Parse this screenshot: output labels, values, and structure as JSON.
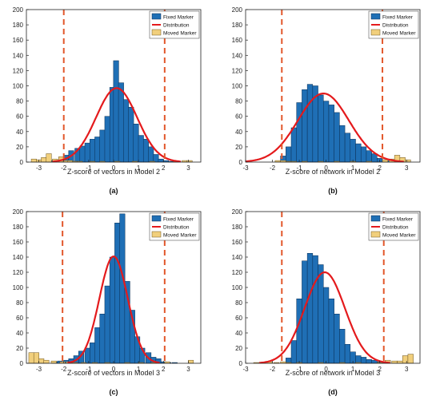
{
  "colors": {
    "fixed": "#1f6fb5",
    "fixed_edge": "#0b2f55",
    "moved": "#f1cf7c",
    "moved_edge": "#6e5520",
    "curve": "#e41a1c",
    "threshold": "#e2572b"
  },
  "chart_data": [
    {
      "type": "bar",
      "caption": "(a)",
      "xlabel": "Z-score of vectors in Model 2",
      "ylabel": "",
      "xlim": [
        -3.5,
        3.5
      ],
      "ylim": [
        0,
        200
      ],
      "xticks": [
        -3,
        -2,
        -1,
        0,
        1,
        2,
        3
      ],
      "yticks": [
        0,
        20,
        40,
        60,
        80,
        100,
        120,
        140,
        160,
        180,
        200
      ],
      "grid": false,
      "legend_position": "top-right",
      "legend": [
        "Fixed Marker",
        "Distribution",
        "Moved Marker"
      ],
      "bin_width": 0.21,
      "fixed_bins": [
        [
          -2.55,
          2
        ],
        [
          -2.35,
          3
        ],
        [
          -2.1,
          6
        ],
        [
          -1.9,
          9
        ],
        [
          -1.7,
          15
        ],
        [
          -1.45,
          18
        ],
        [
          -1.25,
          21
        ],
        [
          -1.05,
          25
        ],
        [
          -0.85,
          30
        ],
        [
          -0.65,
          33
        ],
        [
          -0.45,
          42
        ],
        [
          -0.25,
          60
        ],
        [
          -0.05,
          98
        ],
        [
          0.1,
          133
        ],
        [
          0.3,
          104
        ],
        [
          0.5,
          82
        ],
        [
          0.7,
          72
        ],
        [
          0.9,
          50
        ],
        [
          1.1,
          35
        ],
        [
          1.3,
          30
        ],
        [
          1.5,
          20
        ],
        [
          1.7,
          10
        ],
        [
          1.9,
          4
        ],
        [
          2.1,
          2
        ],
        [
          2.3,
          1
        ],
        [
          2.5,
          1
        ]
      ],
      "moved_bins": [
        [
          -3.2,
          4
        ],
        [
          -3.0,
          3
        ],
        [
          -2.8,
          6
        ],
        [
          -2.6,
          11
        ],
        [
          -2.35,
          4
        ],
        [
          -2.1,
          7
        ],
        [
          -1.95,
          2
        ],
        [
          -1.75,
          2
        ],
        [
          -1.55,
          1
        ],
        [
          -1.35,
          1
        ],
        [
          -0.85,
          1
        ],
        [
          -0.45,
          1
        ],
        [
          0.15,
          1
        ],
        [
          0.85,
          1
        ],
        [
          1.55,
          1
        ],
        [
          2.5,
          1
        ],
        [
          2.85,
          2
        ],
        [
          3.05,
          2
        ]
      ],
      "distribution": {
        "mean": 0.12,
        "sd": 0.82,
        "peak": 97
      },
      "thresholds": [
        -2.0,
        2.05
      ]
    },
    {
      "type": "bar",
      "caption": "(b)",
      "xlabel": "Z-score of network in Model 2",
      "ylabel": "",
      "xlim": [
        -3.0,
        3.5
      ],
      "ylim": [
        0,
        200
      ],
      "xticks": [
        -3,
        -2,
        -1,
        0,
        1,
        2,
        3
      ],
      "yticks": [
        0,
        20,
        40,
        60,
        80,
        100,
        120,
        140,
        160,
        180,
        200
      ],
      "grid": false,
      "legend_position": "top-right",
      "legend": [
        "Fixed Marker",
        "Distribution",
        "Moved Marker"
      ],
      "bin_width": 0.2,
      "fixed_bins": [
        [
          -1.6,
          8
        ],
        [
          -1.4,
          20
        ],
        [
          -1.2,
          45
        ],
        [
          -1.0,
          78
        ],
        [
          -0.8,
          95
        ],
        [
          -0.6,
          102
        ],
        [
          -0.4,
          100
        ],
        [
          -0.2,
          88
        ],
        [
          0.0,
          80
        ],
        [
          0.2,
          75
        ],
        [
          0.4,
          65
        ],
        [
          0.6,
          48
        ],
        [
          0.8,
          38
        ],
        [
          1.0,
          30
        ],
        [
          1.2,
          24
        ],
        [
          1.4,
          20
        ],
        [
          1.6,
          15
        ],
        [
          1.8,
          11
        ],
        [
          2.0,
          5
        ],
        [
          2.2,
          3
        ],
        [
          2.4,
          2
        ]
      ],
      "moved_bins": [
        [
          -1.8,
          2
        ],
        [
          -1.6,
          2
        ],
        [
          -1.4,
          1
        ],
        [
          -1.2,
          1
        ],
        [
          -0.8,
          1
        ],
        [
          -0.2,
          1
        ],
        [
          0.4,
          1
        ],
        [
          1.0,
          1
        ],
        [
          1.6,
          1
        ],
        [
          2.2,
          3
        ],
        [
          2.45,
          4
        ],
        [
          2.65,
          9
        ],
        [
          2.85,
          6
        ],
        [
          3.05,
          3
        ]
      ],
      "distribution": {
        "mean": -0.1,
        "sd": 0.95,
        "peak": 90
      },
      "thresholds": [
        -1.65,
        2.1
      ]
    },
    {
      "type": "bar",
      "caption": "(c)",
      "xlabel": "Z-score of vectors in Model 3",
      "ylabel": "",
      "xlim": [
        -3.5,
        3.5
      ],
      "ylim": [
        0,
        200
      ],
      "xticks": [
        -3,
        -2,
        -1,
        0,
        1,
        2,
        3
      ],
      "yticks": [
        0,
        20,
        40,
        60,
        80,
        100,
        120,
        140,
        160,
        180,
        200
      ],
      "grid": false,
      "legend_position": "top-right",
      "legend": [
        "Fixed Marker",
        "Distribution",
        "Moved Marker"
      ],
      "bin_width": 0.21,
      "fixed_bins": [
        [
          -2.35,
          2
        ],
        [
          -2.15,
          3
        ],
        [
          -1.9,
          4
        ],
        [
          -1.7,
          6
        ],
        [
          -1.5,
          10
        ],
        [
          -1.3,
          16
        ],
        [
          -1.05,
          20
        ],
        [
          -0.85,
          27
        ],
        [
          -0.65,
          47
        ],
        [
          -0.45,
          65
        ],
        [
          -0.25,
          102
        ],
        [
          -0.05,
          140
        ],
        [
          0.15,
          185
        ],
        [
          0.35,
          197
        ],
        [
          0.55,
          108
        ],
        [
          0.75,
          70
        ],
        [
          0.95,
          35
        ],
        [
          1.15,
          20
        ],
        [
          1.4,
          14
        ],
        [
          1.6,
          8
        ],
        [
          1.8,
          6
        ],
        [
          2.0,
          2
        ],
        [
          2.2,
          1
        ],
        [
          2.45,
          1
        ]
      ],
      "moved_bins": [
        [
          -3.3,
          14
        ],
        [
          -3.1,
          14
        ],
        [
          -2.9,
          6
        ],
        [
          -2.7,
          4
        ],
        [
          -2.4,
          3
        ],
        [
          -2.05,
          2
        ],
        [
          -1.8,
          2
        ],
        [
          -1.55,
          1
        ],
        [
          -1.2,
          1
        ],
        [
          -0.75,
          1
        ],
        [
          -0.25,
          1
        ],
        [
          0.55,
          1
        ],
        [
          1.1,
          1
        ],
        [
          1.6,
          1
        ],
        [
          2.15,
          2
        ],
        [
          3.1,
          4
        ]
      ],
      "distribution": {
        "mean": 0.0,
        "sd": 0.57,
        "peak": 141
      },
      "thresholds": [
        -2.05,
        2.05
      ]
    },
    {
      "type": "bar",
      "caption": "(d)",
      "xlabel": "Z-score of network in Model 3",
      "ylabel": "",
      "xlim": [
        -3.0,
        3.5
      ],
      "ylim": [
        0,
        200
      ],
      "xticks": [
        -3,
        -2,
        -1,
        0,
        1,
        2,
        3
      ],
      "yticks": [
        0,
        20,
        40,
        60,
        80,
        100,
        120,
        140,
        160,
        180,
        200
      ],
      "grid": false,
      "legend_position": "top-right",
      "legend": [
        "Fixed Marker",
        "Distribution",
        "Moved Marker"
      ],
      "bin_width": 0.2,
      "fixed_bins": [
        [
          -1.4,
          7
        ],
        [
          -1.2,
          30
        ],
        [
          -1.0,
          85
        ],
        [
          -0.8,
          135
        ],
        [
          -0.6,
          145
        ],
        [
          -0.4,
          142
        ],
        [
          -0.2,
          130
        ],
        [
          0.0,
          100
        ],
        [
          0.2,
          85
        ],
        [
          0.4,
          65
        ],
        [
          0.6,
          45
        ],
        [
          0.8,
          25
        ],
        [
          1.0,
          15
        ],
        [
          1.2,
          10
        ],
        [
          1.4,
          8
        ],
        [
          1.6,
          5
        ],
        [
          1.8,
          4
        ],
        [
          2.0,
          2
        ],
        [
          2.2,
          2
        ]
      ],
      "moved_bins": [
        [
          -2.6,
          1
        ],
        [
          -2.35,
          1
        ],
        [
          -2.1,
          2
        ],
        [
          -1.85,
          1
        ],
        [
          -1.6,
          2
        ],
        [
          -1.4,
          1
        ],
        [
          -1.0,
          1
        ],
        [
          -0.2,
          1
        ],
        [
          0.6,
          1
        ],
        [
          1.2,
          1
        ],
        [
          2.0,
          1
        ],
        [
          2.3,
          4
        ],
        [
          2.55,
          3
        ],
        [
          2.75,
          3
        ],
        [
          2.95,
          10
        ],
        [
          3.15,
          12
        ]
      ],
      "distribution": {
        "mean": -0.05,
        "sd": 0.75,
        "peak": 120
      },
      "thresholds": [
        -1.65,
        2.15
      ]
    }
  ]
}
